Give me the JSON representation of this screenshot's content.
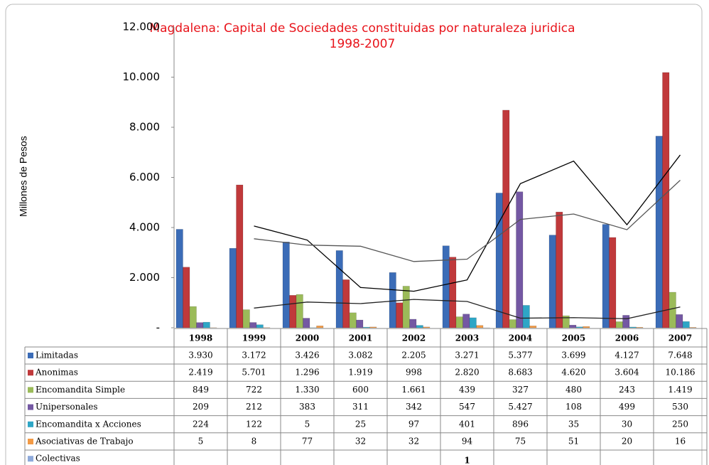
{
  "chart_data": {
    "type": "bar",
    "title": "Magdalena: Capital de Sociedades constituidas por naturaleza juridica",
    "subtitle": "1998-2007",
    "y_label": "Millones de Pesos",
    "categories": [
      "1998",
      "1999",
      "2000",
      "2001",
      "2002",
      "2003",
      "2004",
      "2005",
      "2006",
      "2007"
    ],
    "ylim": [
      0,
      12000
    ],
    "yticks": [
      {
        "value": 0,
        "label": "-"
      },
      {
        "value": 2000,
        "label": "2.000"
      },
      {
        "value": 4000,
        "label": "4.000"
      },
      {
        "value": 6000,
        "label": "6.000"
      },
      {
        "value": 8000,
        "label": "8.000"
      },
      {
        "value": 10000,
        "label": "10.000"
      },
      {
        "value": 12000,
        "label": "12.000"
      }
    ],
    "series": [
      {
        "name": "Limitadas",
        "color": "#3b6cb7",
        "values": [
          3930,
          3172,
          3426,
          3082,
          2205,
          3271,
          5377,
          3699,
          4127,
          7648
        ],
        "value_labels": [
          "3.930",
          "3.172",
          "3.426",
          "3.082",
          "2.205",
          "3.271",
          "5.377",
          "3.699",
          "4.127",
          "7.648"
        ]
      },
      {
        "name": "Anonimas",
        "color": "#c0393b",
        "values": [
          2419,
          5701,
          1296,
          1919,
          998,
          2820,
          8683,
          4620,
          3604,
          10186
        ],
        "value_labels": [
          "2.419",
          "5.701",
          "1.296",
          "1.919",
          "998",
          "2.820",
          "8.683",
          "4.620",
          "3.604",
          "10.186"
        ]
      },
      {
        "name": "Encomandita Simple",
        "color": "#9bbb59",
        "values": [
          849,
          722,
          1330,
          600,
          1661,
          439,
          327,
          480,
          243,
          1419
        ],
        "value_labels": [
          "849",
          "722",
          "1.330",
          "600",
          "1.661",
          "439",
          "327",
          "480",
          "243",
          "1.419"
        ]
      },
      {
        "name": "Unipersonales",
        "color": "#7458a3",
        "values": [
          209,
          212,
          383,
          311,
          342,
          547,
          5427,
          108,
          499,
          530
        ],
        "value_labels": [
          "209",
          "212",
          "383",
          "311",
          "342",
          "547",
          "5.427",
          "108",
          "499",
          "530"
        ]
      },
      {
        "name": "Encomandita x Acciones",
        "color": "#2ea6c6",
        "values": [
          224,
          122,
          5,
          25,
          97,
          401,
          896,
          35,
          30,
          250
        ]
      },
      {
        "name": "Asociativas de Trabajo",
        "color": "#f39a45",
        "values": [
          5,
          8,
          77,
          32,
          32,
          94,
          75,
          51,
          20,
          16
        ]
      },
      {
        "name": "Colectivas",
        "color": "#8eaadb",
        "values": [
          null,
          null,
          null,
          null,
          null,
          1,
          null,
          null,
          null,
          null
        ]
      }
    ],
    "trendlines": [
      {
        "series": 1,
        "period": 2,
        "color": "#000000"
      },
      {
        "series": 0,
        "period": 2,
        "color": "#555555"
      },
      {
        "series": 2,
        "period": 2,
        "color": "#222222"
      }
    ]
  }
}
